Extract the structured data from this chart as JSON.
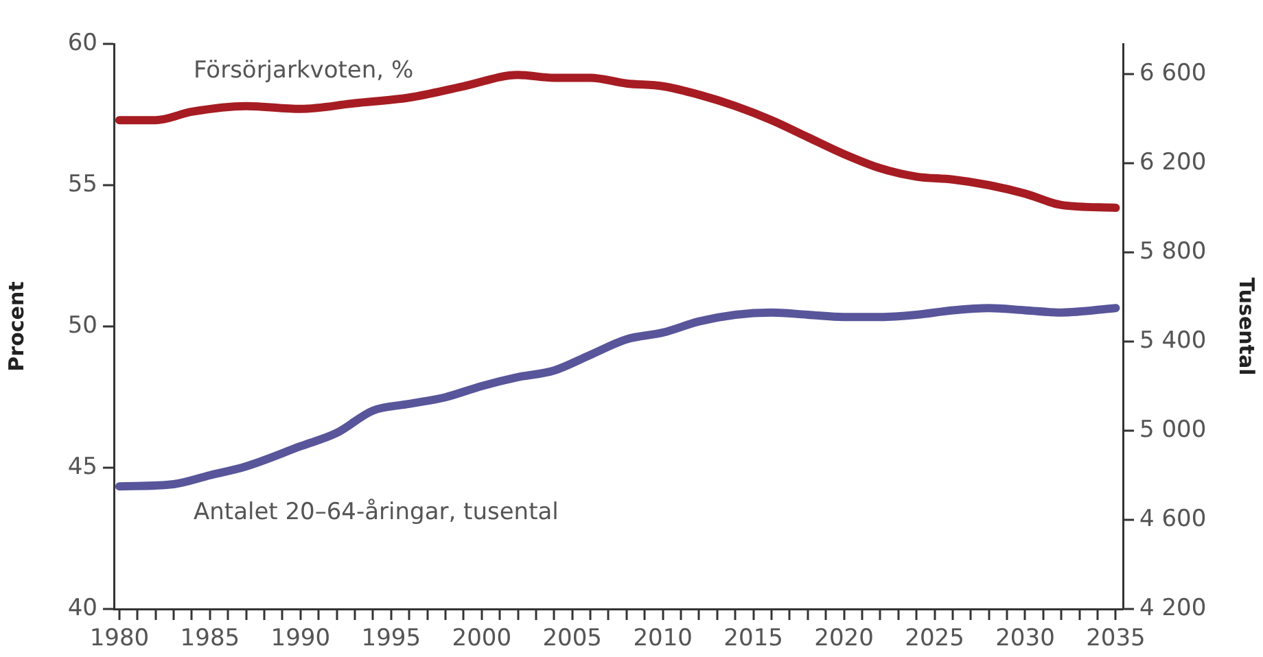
{
  "chart_data": {
    "type": "line",
    "ylabel": "Procent",
    "y2label": "Tusental",
    "xlim": [
      1979.7,
      2035.4
    ],
    "xticks": [
      1980,
      {
        "value": 1981,
        "label": null
      },
      {
        "value": 1982,
        "label": null
      },
      {
        "value": 1983,
        "label": null
      },
      {
        "value": 1984,
        "label": null
      },
      1985,
      {
        "value": 1986,
        "label": null
      },
      {
        "value": 1987,
        "label": null
      },
      {
        "value": 1988,
        "label": null
      },
      {
        "value": 1989,
        "label": null
      },
      1990,
      {
        "value": 1991,
        "label": null
      },
      {
        "value": 1992,
        "label": null
      },
      {
        "value": 1993,
        "label": null
      },
      {
        "value": 1994,
        "label": null
      },
      1995,
      {
        "value": 1996,
        "label": null
      },
      {
        "value": 1997,
        "label": null
      },
      {
        "value": 1998,
        "label": null
      },
      {
        "value": 1999,
        "label": null
      },
      2000,
      {
        "value": 2001,
        "label": null
      },
      {
        "value": 2002,
        "label": null
      },
      {
        "value": 2003,
        "label": null
      },
      {
        "value": 2004,
        "label": null
      },
      2005,
      {
        "value": 2006,
        "label": null
      },
      {
        "value": 2007,
        "label": null
      },
      {
        "value": 2008,
        "label": null
      },
      {
        "value": 2009,
        "label": null
      },
      2010,
      {
        "value": 2011,
        "label": null
      },
      {
        "value": 2012,
        "label": null
      },
      {
        "value": 2013,
        "label": null
      },
      {
        "value": 2014,
        "label": null
      },
      2015,
      {
        "value": 2016,
        "label": null
      },
      {
        "value": 2017,
        "label": null
      },
      {
        "value": 2018,
        "label": null
      },
      {
        "value": 2019,
        "label": null
      },
      2020,
      {
        "value": 2021,
        "label": null
      },
      {
        "value": 2022,
        "label": null
      },
      {
        "value": 2023,
        "label": null
      },
      {
        "value": 2024,
        "label": null
      },
      2025,
      {
        "value": 2026,
        "label": null
      },
      {
        "value": 2027,
        "label": null
      },
      {
        "value": 2028,
        "label": null
      },
      {
        "value": 2029,
        "label": null
      },
      2030,
      {
        "value": 2031,
        "label": null
      },
      {
        "value": 2032,
        "label": null
      },
      {
        "value": 2033,
        "label": null
      },
      {
        "value": 2034,
        "label": null
      },
      2035
    ],
    "ylim": [
      40,
      60
    ],
    "yticks": [
      40,
      45,
      50,
      55,
      60
    ],
    "y2lim": [
      4200,
      6735
    ],
    "y2ticks": [
      {
        "value": 4200,
        "label": "4 200"
      },
      {
        "value": 4600,
        "label": "4 600"
      },
      {
        "value": 5000,
        "label": "5 000"
      },
      {
        "value": 5400,
        "label": "5 400"
      },
      {
        "value": 5800,
        "label": "5 800"
      },
      {
        "value": 6200,
        "label": "6 200"
      },
      {
        "value": 6600,
        "label": "6 600"
      }
    ],
    "grid": false,
    "legend": false,
    "marker": "none",
    "line_style": "solid",
    "series": [
      {
        "name": "Försörjarkvoten, %",
        "color": "#a61c22",
        "x": [
          1980,
          1982,
          1984,
          1987,
          1990,
          1993,
          1996,
          1999,
          2002,
          2004,
          2006,
          2008,
          2010,
          2012,
          2014,
          2016,
          2018,
          2020,
          2022,
          2024,
          2026,
          2028,
          2030,
          2032,
          2035
        ],
        "values": [
          57.3,
          57.3,
          57.6,
          57.8,
          57.7,
          57.9,
          58.1,
          58.5,
          58.9,
          58.8,
          58.8,
          58.6,
          58.5,
          58.2,
          57.8,
          57.3,
          56.7,
          56.1,
          55.6,
          55.3,
          55.2,
          55.0,
          54.7,
          54.3,
          54.2
        ]
      },
      {
        "name": "Antalet 20–64-åringar, tusental",
        "color": "#58559b",
        "axis": "y2",
        "x": [
          1980,
          1983,
          1985,
          1987,
          1990,
          1992,
          1994,
          1996,
          1998,
          2000,
          2002,
          2004,
          2006,
          2008,
          2010,
          2012,
          2014,
          2016,
          2018,
          2020,
          2022,
          2024,
          2026,
          2028,
          2030,
          2032,
          2035
        ],
        "values": [
          4750,
          4760,
          4800,
          4840,
          4930,
          4990,
          5090,
          5120,
          5150,
          5200,
          5240,
          5270,
          5340,
          5410,
          5440,
          5490,
          5520,
          5530,
          5520,
          5510,
          5510,
          5520,
          5540,
          5550,
          5540,
          5530,
          5550
        ]
      }
    ]
  }
}
